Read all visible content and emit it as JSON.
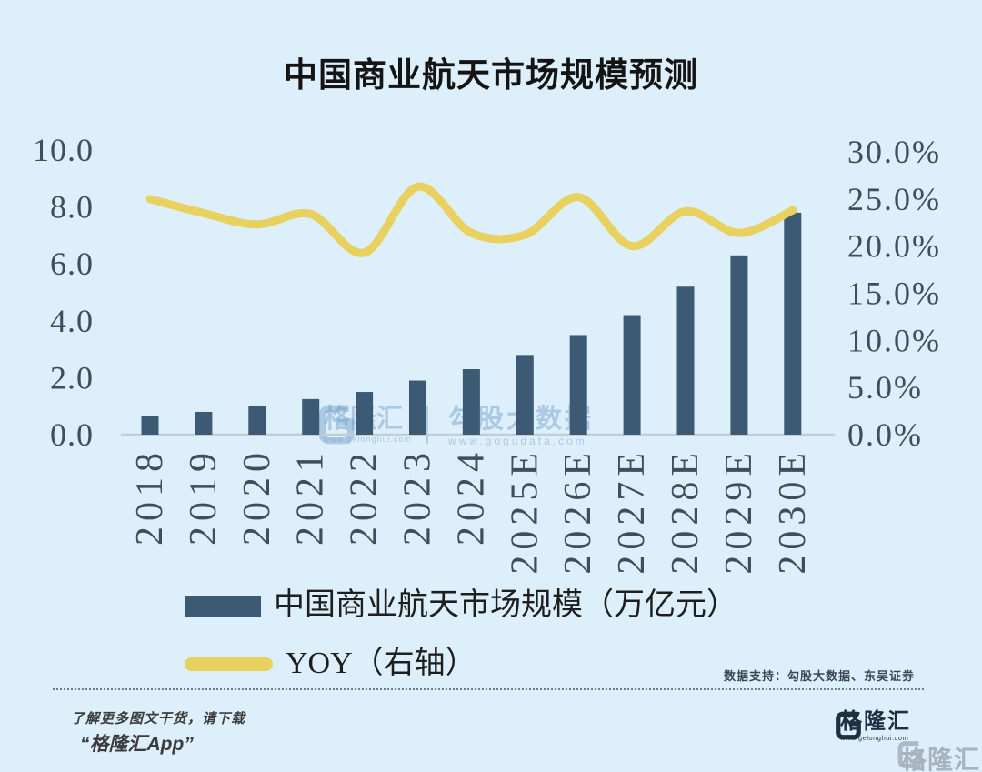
{
  "title": "中国商业航天市场规模预测",
  "colors": {
    "background": "#ddeffa",
    "bar": "#3d5a75",
    "line": "#e8d15e",
    "axis_text": "#3f4e5a",
    "axis_line": "#c2ced6",
    "title_text": "#141414",
    "footer_navy": "#1c3044"
  },
  "chart_data": {
    "type": "bar",
    "subtype": "combo bar+line, dual axis",
    "title": "中国商业航天市场规模预测",
    "categories": [
      "2018",
      "2019",
      "2020",
      "2021",
      "2022",
      "2023",
      "2024",
      "2025E",
      "2026E",
      "2027E",
      "2028E",
      "2029E",
      "2030E"
    ],
    "series": [
      {
        "name": "中国商业航天市场规模（万亿元）",
        "type": "bar",
        "axis": "left",
        "unit": "万亿元",
        "values": [
          0.65,
          0.8,
          1.0,
          1.25,
          1.5,
          1.9,
          2.3,
          2.8,
          3.5,
          4.2,
          5.2,
          6.3,
          7.8
        ]
      },
      {
        "name": "YOY（右轴）",
        "type": "line",
        "axis": "right",
        "unit": "%",
        "values": [
          25.0,
          23.5,
          22.3,
          23.4,
          19.3,
          26.3,
          21.4,
          21.2,
          25.2,
          20.0,
          23.7,
          21.4,
          23.8
        ]
      }
    ],
    "left_axis": {
      "min": 0,
      "max": 10,
      "ticks": [
        "0.0",
        "2.0",
        "4.0",
        "6.0",
        "8.0",
        "10.0"
      ]
    },
    "right_axis": {
      "min": 0,
      "max": 30,
      "ticks": [
        "0.0%",
        "5.0%",
        "10.0%",
        "15.0%",
        "20.0%",
        "25.0%",
        "30.0%"
      ]
    },
    "grid": false,
    "legend_position": "bottom-left"
  },
  "legend": {
    "bar_label": "中国商业航天市场规模（万亿元）",
    "line_label": "YOY（右轴）"
  },
  "watermark_center": {
    "brand": "格隆汇",
    "brand_url": "www.gelonghui.com",
    "partner": "勾股大数据",
    "partner_url": "www.gogudata.com"
  },
  "footer": {
    "data_support": "数据支持：勾股大数据、东吴证券",
    "promo_line1": "了解更多图文干货，请下载",
    "promo_line2": "“格隆汇App”",
    "brand": "格隆汇",
    "brand_url": "www.gelonghui.com",
    "corner_watermark": "格隆汇"
  }
}
